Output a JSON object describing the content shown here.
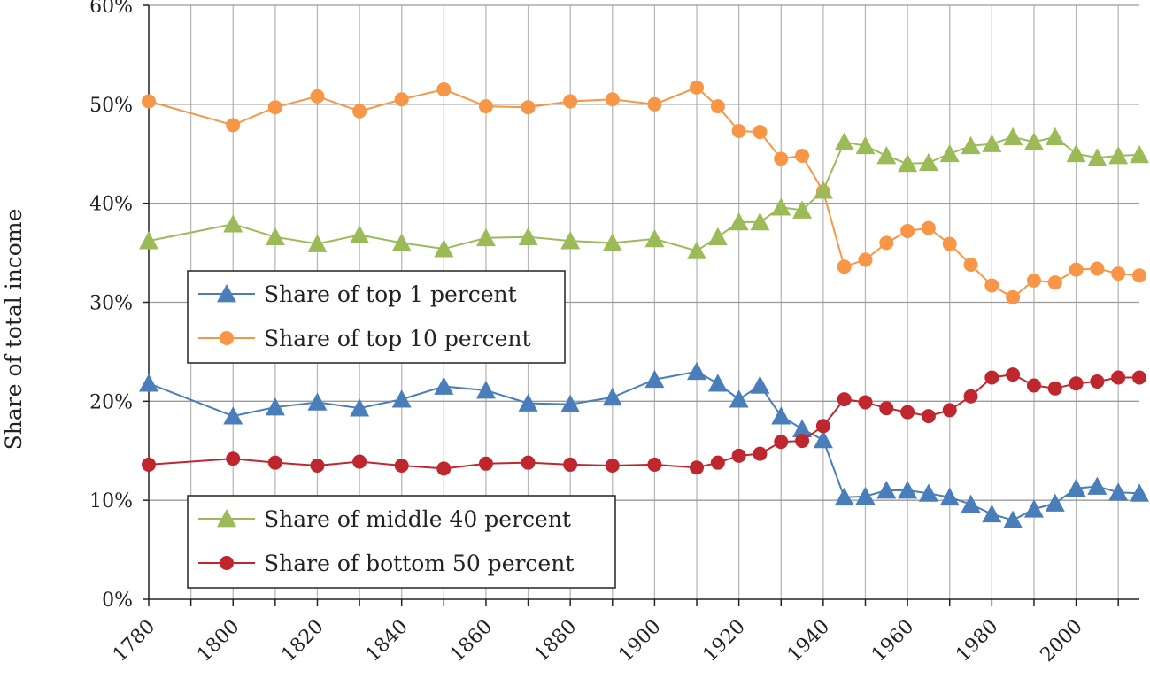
{
  "chart_data": {
    "type": "line",
    "title": "",
    "xlabel": "",
    "ylabel": "Share of total income",
    "xlim": [
      1780,
      2015
    ],
    "ylim": [
      0,
      0.6
    ],
    "y_ticks": [
      "0%",
      "10%",
      "20%",
      "30%",
      "40%",
      "50%",
      "60%"
    ],
    "x_ticks": [
      "1780",
      "1800",
      "1820",
      "1840",
      "1860",
      "1880",
      "1900",
      "1920",
      "1940",
      "1960",
      "1980",
      "2000"
    ],
    "grid": true,
    "series": [
      {
        "name": "Share of top 1 percent",
        "color": "#4a7ebb",
        "marker": "triangle",
        "x": [
          1780,
          1800,
          1810,
          1820,
          1830,
          1840,
          1850,
          1860,
          1870,
          1880,
          1890,
          1900,
          1910,
          1915,
          1920,
          1925,
          1930,
          1935,
          1940,
          1945,
          1950,
          1955,
          1960,
          1965,
          1970,
          1975,
          1980,
          1985,
          1990,
          1995,
          2000,
          2005,
          2010,
          2015
        ],
        "values": [
          0.218,
          0.185,
          0.194,
          0.199,
          0.193,
          0.202,
          0.215,
          0.211,
          0.198,
          0.197,
          0.204,
          0.222,
          0.23,
          0.218,
          0.202,
          0.216,
          0.185,
          0.172,
          0.161,
          0.103,
          0.104,
          0.11,
          0.11,
          0.107,
          0.103,
          0.096,
          0.086,
          0.08,
          0.091,
          0.097,
          0.112,
          0.114,
          0.108,
          0.107
        ]
      },
      {
        "name": "Share of top 10 percent",
        "color": "#f79646",
        "marker": "circle",
        "x": [
          1780,
          1800,
          1810,
          1820,
          1830,
          1840,
          1850,
          1860,
          1870,
          1880,
          1890,
          1900,
          1910,
          1915,
          1920,
          1925,
          1930,
          1935,
          1940,
          1945,
          1950,
          1955,
          1960,
          1965,
          1970,
          1975,
          1980,
          1985,
          1990,
          1995,
          2000,
          2005,
          2010,
          2015
        ],
        "values": [
          0.503,
          0.479,
          0.497,
          0.508,
          0.493,
          0.505,
          0.515,
          0.498,
          0.497,
          0.503,
          0.505,
          0.5,
          0.517,
          0.498,
          0.473,
          0.472,
          0.445,
          0.448,
          0.412,
          0.336,
          0.343,
          0.36,
          0.372,
          0.375,
          0.359,
          0.338,
          0.317,
          0.305,
          0.322,
          0.32,
          0.333,
          0.334,
          0.329,
          0.327
        ]
      },
      {
        "name": "Share of middle 40 percent",
        "color": "#9bbb59",
        "marker": "triangle",
        "x": [
          1780,
          1800,
          1810,
          1820,
          1830,
          1840,
          1850,
          1860,
          1870,
          1880,
          1890,
          1900,
          1910,
          1915,
          1920,
          1925,
          1930,
          1935,
          1940,
          1945,
          1950,
          1955,
          1960,
          1965,
          1970,
          1975,
          1980,
          1985,
          1990,
          1995,
          2000,
          2005,
          2010,
          2015
        ],
        "values": [
          0.362,
          0.379,
          0.366,
          0.359,
          0.368,
          0.36,
          0.354,
          0.365,
          0.366,
          0.362,
          0.36,
          0.364,
          0.352,
          0.366,
          0.381,
          0.381,
          0.396,
          0.393,
          0.413,
          0.462,
          0.458,
          0.448,
          0.44,
          0.441,
          0.45,
          0.458,
          0.46,
          0.467,
          0.462,
          0.467,
          0.45,
          0.446,
          0.448,
          0.449
        ]
      },
      {
        "name": "Share of bottom 50 percent",
        "color": "#c0262d",
        "marker": "circle",
        "x": [
          1780,
          1800,
          1810,
          1820,
          1830,
          1840,
          1850,
          1860,
          1870,
          1880,
          1890,
          1900,
          1910,
          1915,
          1920,
          1925,
          1930,
          1935,
          1940,
          1945,
          1950,
          1955,
          1960,
          1965,
          1970,
          1975,
          1980,
          1985,
          1990,
          1995,
          2000,
          2005,
          2010,
          2015
        ],
        "values": [
          0.136,
          0.142,
          0.138,
          0.135,
          0.139,
          0.135,
          0.132,
          0.137,
          0.138,
          0.136,
          0.135,
          0.136,
          0.133,
          0.138,
          0.145,
          0.147,
          0.159,
          0.16,
          0.175,
          0.202,
          0.199,
          0.193,
          0.189,
          0.185,
          0.191,
          0.205,
          0.224,
          0.227,
          0.216,
          0.213,
          0.218,
          0.22,
          0.224,
          0.224
        ]
      }
    ],
    "legends": [
      {
        "placement": "center-left",
        "entries": [
          0,
          1
        ]
      },
      {
        "placement": "bottom-left",
        "entries": [
          2,
          3
        ]
      }
    ]
  }
}
